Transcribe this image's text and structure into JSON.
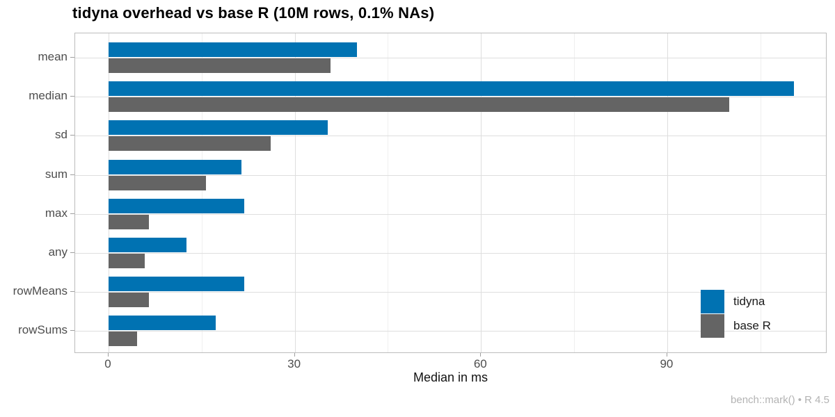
{
  "chart_data": {
    "type": "bar",
    "orientation": "horizontal",
    "title": "tidyna overhead vs base R (10M rows, 0.1% NAs)",
    "xlabel": "Median in ms",
    "ylabel": "",
    "categories": [
      "mean",
      "median",
      "sd",
      "sum",
      "max",
      "any",
      "rowMeans",
      "rowSums"
    ],
    "series": [
      {
        "name": "tidyna",
        "color": "#0072B2",
        "values": [
          40.0,
          110.4,
          35.3,
          21.4,
          21.9,
          12.5,
          21.9,
          17.3
        ]
      },
      {
        "name": "base R",
        "color": "#646464",
        "values": [
          35.7,
          100.0,
          26.1,
          15.7,
          6.5,
          5.8,
          6.5,
          4.6
        ]
      }
    ],
    "xlim": [
      0,
      116
    ],
    "x_major_ticks": [
      0,
      30,
      60,
      90
    ],
    "x_minor_ticks": [
      15,
      45,
      75,
      105
    ],
    "grid": "major and minor vertical, major horizontal at category centers",
    "legend_position": "inside right",
    "caption": "bench::mark() • R 4.5"
  },
  "colors": {
    "series_tidyna": "#0072B2",
    "series_base_r": "#646464",
    "panel_border": "#bcbcbc",
    "grid_major": "#dedede",
    "grid_minor": "#efefef",
    "axis_text": "#4d4d4d",
    "caption_text": "#b3b3b3"
  }
}
